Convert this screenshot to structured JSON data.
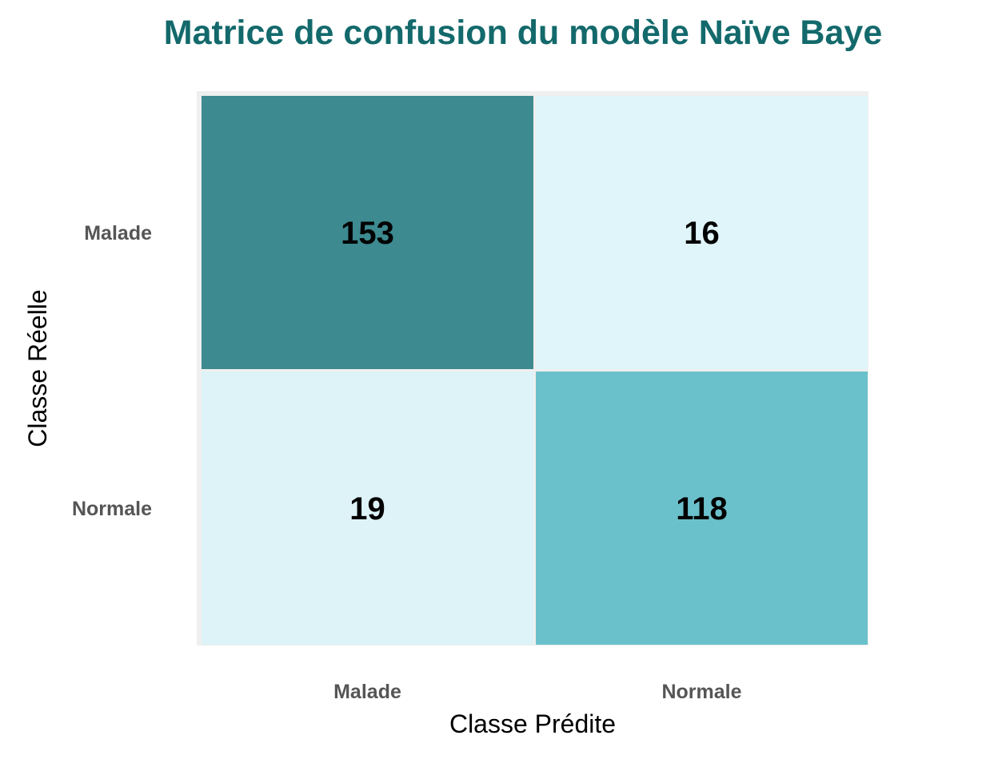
{
  "chart_data": {
    "type": "heatmap",
    "title": "Matrice de confusion du modèle Naïve Baye",
    "xlabel": "Classe Prédite",
    "ylabel": "Classe Réelle",
    "x_categories": [
      "Malade",
      "Normale"
    ],
    "y_categories": [
      "Malade",
      "Normale"
    ],
    "values": [
      [
        153,
        16
      ],
      [
        19,
        118
      ]
    ],
    "grid": false,
    "legend": "none"
  },
  "colors": {
    "title": "#13696b",
    "panel_background": "#efefef",
    "scale_low": "#e0f5f9",
    "scale_mid": "#6ac1cb",
    "scale_high": "#3d8a90",
    "cell_text": "#000000",
    "tick_text": "#555555"
  }
}
